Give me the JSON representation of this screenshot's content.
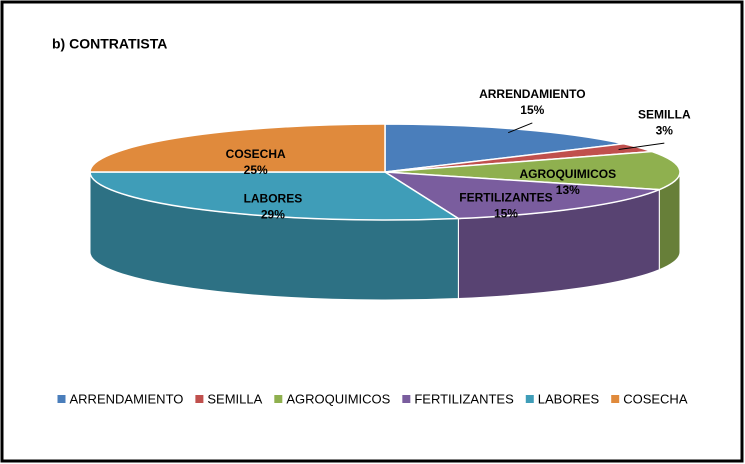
{
  "chart_data": {
    "type": "pie",
    "title": "b) CONTRATISTA",
    "categories": [
      "ARRENDAMIENTO",
      "SEMILLA",
      "AGROQUIMICOS",
      "FERTILIZANTES",
      "LABORES",
      "COSECHA"
    ],
    "values": [
      15,
      3,
      13,
      15,
      29,
      25
    ],
    "value_labels": [
      "15%",
      "3%",
      "13%",
      "15%",
      "29%",
      "25%"
    ],
    "colors": [
      "#4a7ebb",
      "#c0504d",
      "#8fb04f",
      "#7a5d9e",
      "#3f9db8",
      "#e08a3c"
    ],
    "legend": "bottom"
  }
}
